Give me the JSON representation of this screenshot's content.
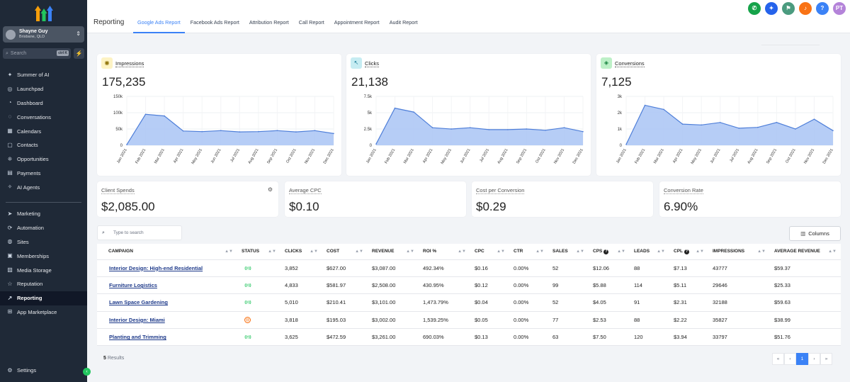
{
  "account": {
    "name": "Shayne Guy",
    "location": "Brisbane, QLD"
  },
  "sidebar": {
    "search_placeholder": "Search",
    "search_shortcut": "ctrl K",
    "items": [
      {
        "label": "Summer of AI",
        "icon": "sparkle-icon"
      },
      {
        "label": "Launchpad",
        "icon": "rocket-icon"
      },
      {
        "label": "Dashboard",
        "icon": "gauge-icon"
      },
      {
        "label": "Conversations",
        "icon": "chat-icon"
      },
      {
        "label": "Calendars",
        "icon": "calendar-icon"
      },
      {
        "label": "Contacts",
        "icon": "contacts-icon"
      },
      {
        "label": "Opportunities",
        "icon": "funnel-icon"
      },
      {
        "label": "Payments",
        "icon": "payments-icon"
      },
      {
        "label": "AI Agents",
        "icon": "ai-icon"
      }
    ],
    "items2": [
      {
        "label": "Marketing",
        "icon": "send-icon"
      },
      {
        "label": "Automation",
        "icon": "automation-icon"
      },
      {
        "label": "Sites",
        "icon": "globe-icon"
      },
      {
        "label": "Memberships",
        "icon": "memberships-icon"
      },
      {
        "label": "Media Storage",
        "icon": "media-icon"
      },
      {
        "label": "Reputation",
        "icon": "star-icon"
      },
      {
        "label": "Reporting",
        "icon": "trend-icon"
      },
      {
        "label": "App Marketplace",
        "icon": "grid-icon"
      }
    ],
    "settings_label": "Settings"
  },
  "header": {
    "title": "Reporting",
    "tabs": [
      {
        "label": "Google Ads Report"
      },
      {
        "label": "Facebook Ads Report"
      },
      {
        "label": "Attribution Report"
      },
      {
        "label": "Call Report"
      },
      {
        "label": "Appointment Report"
      },
      {
        "label": "Audit Report"
      }
    ],
    "avatar_initials": "PT",
    "help_icon_text": "?"
  },
  "metrics": {
    "impressions": {
      "title": "Impressions",
      "value": "175,235"
    },
    "clicks": {
      "title": "Clicks",
      "value": "21,138"
    },
    "conversions": {
      "title": "Conversions",
      "value": "7,125"
    }
  },
  "summary": {
    "client_spends": {
      "title": "Client Spends",
      "value": "$2,085.00"
    },
    "avg_cpc": {
      "title": "Average CPC",
      "value": "$0.10"
    },
    "cost_per_conversion": {
      "title": "Cost per Conversion",
      "value": "$0.29"
    },
    "conversion_rate": {
      "title": "Conversion Rate",
      "value": "6.90%"
    }
  },
  "chart_data": [
    {
      "type": "area",
      "title": "Impressions",
      "categories": [
        "Jan 2021",
        "Feb 2021",
        "Mar 2021",
        "Apr 2021",
        "May 2021",
        "Jun 2021",
        "Jul 2021",
        "Aug 2021",
        "Sep 2021",
        "Oct 2021",
        "Nov 2021",
        "Dec 2021"
      ],
      "values": [
        2000,
        95000,
        90000,
        44000,
        42000,
        45000,
        41000,
        42000,
        45000,
        41000,
        45000,
        36000
      ],
      "yticks": [
        "150k",
        "100k",
        "50k",
        "0"
      ],
      "ylim": [
        0,
        150000
      ]
    },
    {
      "type": "area",
      "title": "Clicks",
      "categories": [
        "Jan 2021",
        "Feb 2021",
        "Mar 2021",
        "Apr 2021",
        "May 2021",
        "Jun 2021",
        "Jul 2021",
        "Aug 2021",
        "Sep 2021",
        "Oct 2021",
        "Nov 2021",
        "Dec 2021"
      ],
      "values": [
        200,
        5700,
        5100,
        2700,
        2500,
        2700,
        2400,
        2400,
        2500,
        2300,
        2700,
        2100
      ],
      "yticks": [
        "7.5k",
        "5k",
        "2.5k",
        "0"
      ],
      "ylim": [
        0,
        7500
      ]
    },
    {
      "type": "area",
      "title": "Conversions",
      "categories": [
        "Jan 2021",
        "Feb 2021",
        "Mar 2021",
        "Apr 2021",
        "May 2021",
        "Jun 2021",
        "Jul 2021",
        "Aug 2021",
        "Sep 2021",
        "Oct 2021",
        "Nov 2021",
        "Dec 2021"
      ],
      "values": [
        50,
        2450,
        2200,
        1300,
        1250,
        1400,
        1050,
        1100,
        1400,
        1000,
        1600,
        900
      ],
      "yticks": [
        "3k",
        "2k",
        "1k",
        "0"
      ],
      "ylim": [
        0,
        3000
      ]
    }
  ],
  "table": {
    "search_placeholder": "Type to search",
    "columns_label": "Columns",
    "headers": [
      "CAMPAIGN",
      "STATUS",
      "CLICKS",
      "COST",
      "REVENUE",
      "ROI %",
      "CPC",
      "CTR",
      "SALES",
      "CPS",
      "LEADS",
      "CPL",
      "IMPRESSIONS",
      "AVERAGE REVENUE"
    ],
    "rows": [
      {
        "campaign": "Interior Design: High-end Residential",
        "status": "active",
        "clicks": "3,852",
        "cost": "$627.00",
        "revenue": "$3,087.00",
        "roi": "492.34%",
        "cpc": "$0.16",
        "ctr": "0.00%",
        "sales": "52",
        "cps": "$12.06",
        "leads": "88",
        "cpl": "$7.13",
        "impressions": "43777",
        "avg_revenue": "$59.37"
      },
      {
        "campaign": "Furniture Logistics",
        "status": "active",
        "clicks": "4,833",
        "cost": "$581.97",
        "revenue": "$2,508.00",
        "roi": "430.95%",
        "cpc": "$0.12",
        "ctr": "0.00%",
        "sales": "99",
        "cps": "$5.88",
        "leads": "114",
        "cpl": "$5.11",
        "impressions": "29646",
        "avg_revenue": "$25.33"
      },
      {
        "campaign": "Lawn Space Gardening",
        "status": "active",
        "clicks": "5,010",
        "cost": "$210.41",
        "revenue": "$3,101.00",
        "roi": "1,473.79%",
        "cpc": "$0.04",
        "ctr": "0.00%",
        "sales": "52",
        "cps": "$4.05",
        "leads": "91",
        "cpl": "$2.31",
        "impressions": "32188",
        "avg_revenue": "$59.63"
      },
      {
        "campaign": "Interior Design: Miami",
        "status": "paused",
        "clicks": "3,818",
        "cost": "$195.03",
        "revenue": "$3,002.00",
        "roi": "1,539.25%",
        "cpc": "$0.05",
        "ctr": "0.00%",
        "sales": "77",
        "cps": "$2.53",
        "leads": "88",
        "cpl": "$2.22",
        "impressions": "35827",
        "avg_revenue": "$38.99"
      },
      {
        "campaign": "Planting and Trimming",
        "status": "active",
        "clicks": "3,625",
        "cost": "$472.59",
        "revenue": "$3,261.00",
        "roi": "690.03%",
        "cpc": "$0.13",
        "ctr": "0.00%",
        "sales": "63",
        "cps": "$7.50",
        "leads": "120",
        "cpl": "$3.94",
        "impressions": "33797",
        "avg_revenue": "$51.76"
      }
    ],
    "results_count": "5",
    "results_label": "Results",
    "page": "1",
    "pager_first": "«",
    "pager_prev": "‹",
    "pager_next": "›",
    "pager_last": "»"
  },
  "colors": {
    "accent": "#3b82f6",
    "sidebar": "#1f2937",
    "area_fill": "#a9c4f5",
    "area_line": "#4f7fd9"
  }
}
